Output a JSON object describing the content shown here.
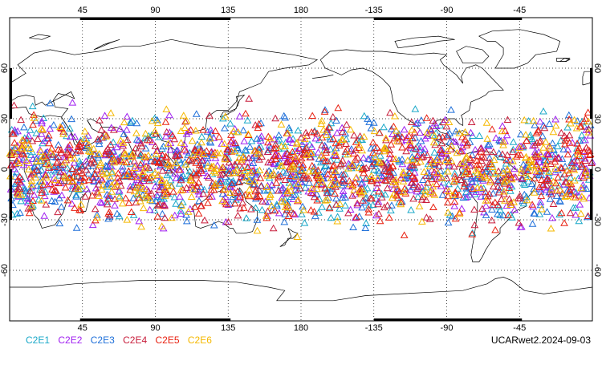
{
  "map": {
    "top_lon_labels": [
      "45",
      "90",
      "135",
      "180",
      "-135",
      "-90",
      "-45"
    ],
    "bottom_lon_labels": [
      "45",
      "90",
      "135",
      "180",
      "-135",
      "-90",
      "-45"
    ],
    "lat_labels": [
      "60",
      "30",
      "0",
      "-30",
      "-60"
    ],
    "gridlines": true,
    "projection": "cylindrical equidistant, centered on 180",
    "lat_range": [
      -90,
      90
    ],
    "lon_range": [
      0,
      360
    ]
  },
  "legend": [
    {
      "label": "C2E1",
      "color": "#19a8c8"
    },
    {
      "label": "C2E2",
      "color": "#a020f0"
    },
    {
      "label": "C2E3",
      "color": "#1e6fd9"
    },
    {
      "label": "C2E4",
      "color": "#c81e3c"
    },
    {
      "label": "C2E5",
      "color": "#e82010"
    },
    {
      "label": "C2E6",
      "color": "#f5b800"
    }
  ],
  "footer_stamp": "UCARwet2.2024-09-03",
  "observations": {
    "marker": "triangle-open",
    "lat_band": [
      -45,
      45
    ],
    "count_per_satellite": 400
  }
}
